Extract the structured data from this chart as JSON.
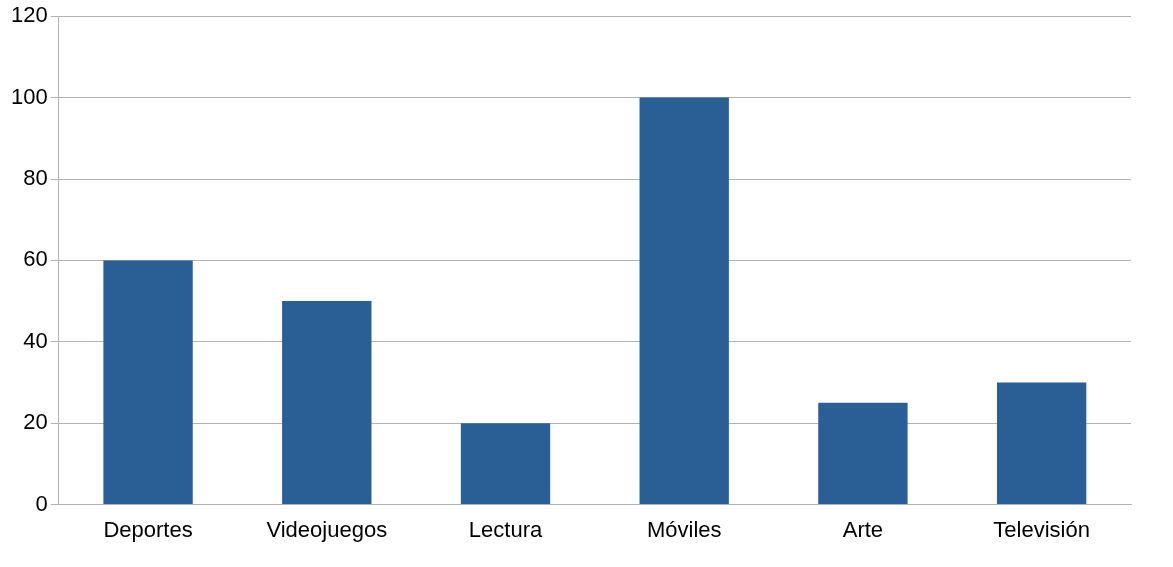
{
  "chart_data": {
    "type": "bar",
    "categories": [
      "Deportes",
      "Videojuegos",
      "Lectura",
      "Móviles",
      "Arte",
      "Televisión"
    ],
    "values": [
      60,
      50,
      20,
      100,
      25,
      30
    ],
    "color": "#2a5f96",
    "ylim": [
      0,
      120
    ],
    "yticks": [
      0,
      20,
      40,
      60,
      80,
      100,
      120
    ],
    "grid": "y",
    "legend": false
  }
}
